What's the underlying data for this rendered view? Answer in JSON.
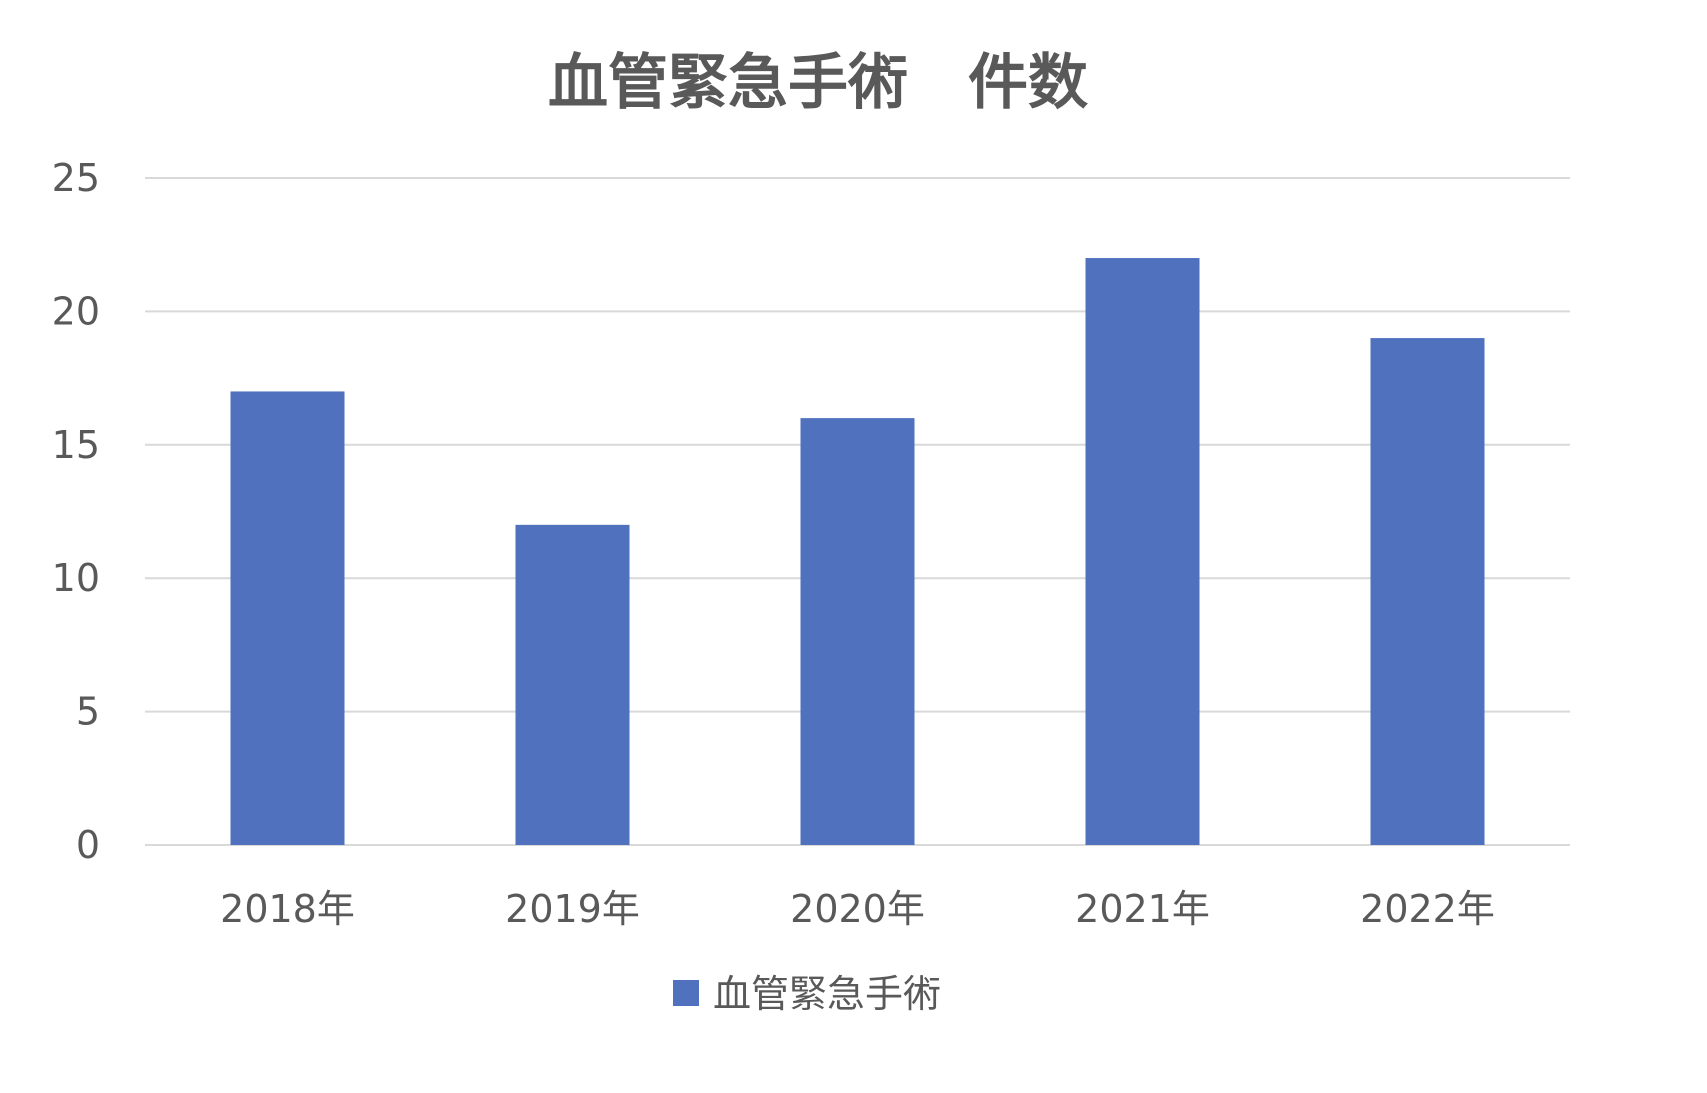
{
  "chart_data": {
    "type": "bar",
    "title": "血管緊急手術　件数",
    "xlabel": "",
    "ylabel": "",
    "categories": [
      "2018年",
      "2019年",
      "2020年",
      "2021年",
      "2022年"
    ],
    "series": [
      {
        "name": "血管緊急手術",
        "values": [
          17,
          12,
          16,
          22,
          19
        ],
        "color": "#4f71be"
      }
    ],
    "ylim": [
      0,
      25
    ],
    "yticks": [
      "0",
      "5",
      "10",
      "15",
      "20",
      "25"
    ],
    "grid": true,
    "legend": "bottom"
  }
}
